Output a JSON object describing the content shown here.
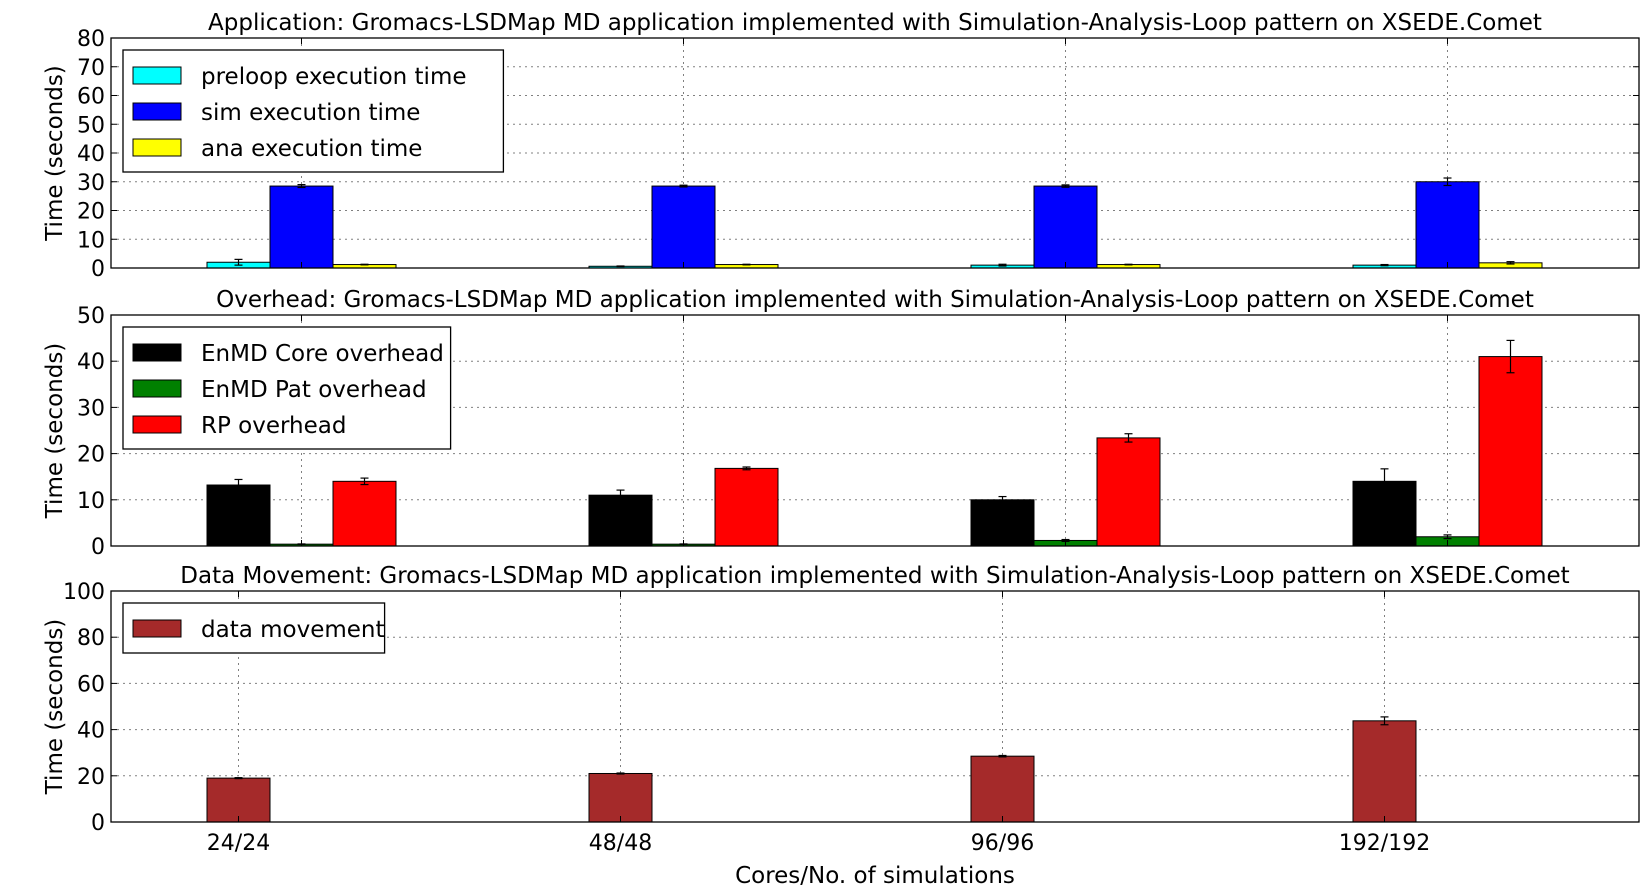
{
  "chart_data": [
    {
      "type": "bar",
      "title": "Application: Gromacs-LSDMap MD application implemented with Simulation-Analysis-Loop pattern on XSEDE.Comet",
      "xlabel": "",
      "ylabel": "Time (seconds)",
      "ylim": [
        0,
        80
      ],
      "yticks": [
        0,
        10,
        20,
        30,
        40,
        50,
        60,
        70,
        80
      ],
      "categories": [
        "24/24",
        "48/48",
        "96/96",
        "192/192"
      ],
      "grid": true,
      "legend_position": "top-left",
      "series": [
        {
          "name": "preloop execution time",
          "color": "#00ffff",
          "values": [
            2.0,
            0.6,
            1.0,
            1.0
          ],
          "errors": [
            1.0,
            0.1,
            0.3,
            0.2
          ]
        },
        {
          "name": "sim execution time",
          "color": "#0000ff",
          "values": [
            28.5,
            28.5,
            28.5,
            30.0
          ],
          "errors": [
            0.5,
            0.3,
            0.4,
            1.3
          ]
        },
        {
          "name": "ana execution time",
          "color": "#ffff00",
          "values": [
            1.2,
            1.2,
            1.2,
            1.8
          ],
          "errors": [
            0.1,
            0.1,
            0.1,
            0.4
          ]
        }
      ]
    },
    {
      "type": "bar",
      "title": "Overhead: Gromacs-LSDMap MD application implemented with Simulation-Analysis-Loop pattern on XSEDE.Comet",
      "xlabel": "",
      "ylabel": "Time (seconds)",
      "ylim": [
        0,
        50
      ],
      "yticks": [
        0,
        10,
        20,
        30,
        40,
        50
      ],
      "categories": [
        "24/24",
        "48/48",
        "96/96",
        "192/192"
      ],
      "grid": true,
      "legend_position": "top-left",
      "series": [
        {
          "name": "EnMD Core overhead",
          "color": "#000000",
          "values": [
            13.2,
            11.0,
            10.0,
            14.0
          ],
          "errors": [
            1.2,
            1.1,
            0.7,
            2.7
          ]
        },
        {
          "name": "EnMD Pat overhead",
          "color": "#008000",
          "values": [
            0.4,
            0.4,
            1.2,
            2.0
          ],
          "errors": [
            0.05,
            0.05,
            0.2,
            0.4
          ]
        },
        {
          "name": "RP overhead",
          "color": "#ff0000",
          "values": [
            14.0,
            16.8,
            23.4,
            41.0
          ],
          "errors": [
            0.7,
            0.3,
            0.9,
            3.5
          ]
        }
      ]
    },
    {
      "type": "bar",
      "title": "Data Movement: Gromacs-LSDMap MD application implemented with Simulation-Analysis-Loop pattern on XSEDE.Comet",
      "xlabel": "Cores/No. of simulations",
      "ylabel": "Time (seconds)",
      "ylim": [
        0,
        100
      ],
      "yticks": [
        0,
        20,
        40,
        60,
        80,
        100
      ],
      "categories": [
        "24/24",
        "48/48",
        "96/96",
        "192/192"
      ],
      "grid": true,
      "legend_position": "top-left",
      "series": [
        {
          "name": "data movement",
          "color": "#a52a2a",
          "values": [
            19.0,
            21.0,
            28.5,
            43.8
          ],
          "errors": [
            0.2,
            0.2,
            0.3,
            1.7
          ]
        }
      ]
    }
  ]
}
